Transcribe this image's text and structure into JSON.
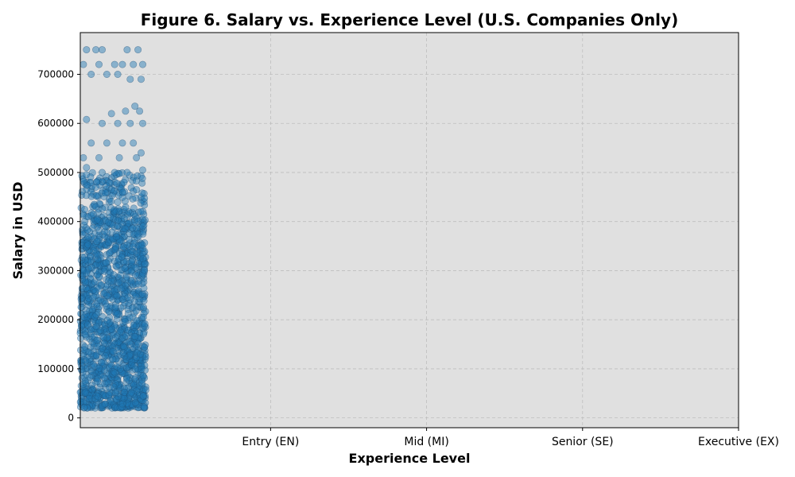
{
  "chart_data": {
    "type": "scatter",
    "title": "Figure 6. Salary vs. Experience Level (U.S. Companies Only)",
    "xlabel": "Experience Level",
    "ylabel": "Salary in USD",
    "x_categories": [
      "Entry (EN)",
      "Mid (MI)",
      "Senior (SE)",
      "Executive (EX)"
    ],
    "x_categories_tick_positions": [
      0,
      1,
      2,
      3
    ],
    "xlim": [
      -1.22,
      3
    ],
    "ylim": [
      -20000,
      785000
    ],
    "yticks": [
      0,
      100000,
      200000,
      300000,
      400000,
      500000,
      600000,
      700000
    ],
    "grid": true,
    "point_color": "#1f77b4",
    "point_edge_color": "#1f4f78",
    "background_color": "#e0e0e0",
    "series": [
      {
        "x_range": [
          -1.22,
          -0.8
        ],
        "dense_salary_range": [
          20000,
          420000
        ],
        "outliers": [
          [
            -1.18,
            750000
          ],
          [
            -1.12,
            750000
          ],
          [
            -1.08,
            750000
          ],
          [
            -0.92,
            750000
          ],
          [
            -0.85,
            750000
          ],
          [
            -1.2,
            720000
          ],
          [
            -1.1,
            720000
          ],
          [
            -1.0,
            720000
          ],
          [
            -0.95,
            720000
          ],
          [
            -0.88,
            720000
          ],
          [
            -0.82,
            720000
          ],
          [
            -1.15,
            700000
          ],
          [
            -1.05,
            700000
          ],
          [
            -0.98,
            700000
          ],
          [
            -0.9,
            690000
          ],
          [
            -0.83,
            690000
          ],
          [
            -1.02,
            620000
          ],
          [
            -0.93,
            625000
          ],
          [
            -0.87,
            635000
          ],
          [
            -0.84,
            625000
          ],
          [
            -1.18,
            608000
          ],
          [
            -1.08,
            600000
          ],
          [
            -0.98,
            600000
          ],
          [
            -0.9,
            600000
          ],
          [
            -0.82,
            600000
          ],
          [
            -1.15,
            560000
          ],
          [
            -1.05,
            560000
          ],
          [
            -0.95,
            560000
          ],
          [
            -0.88,
            560000
          ],
          [
            -1.2,
            530000
          ],
          [
            -1.1,
            530000
          ],
          [
            -0.97,
            530000
          ],
          [
            -0.86,
            530000
          ],
          [
            -0.83,
            540000
          ],
          [
            -1.18,
            510000
          ],
          [
            -1.08,
            500000
          ],
          [
            -1.0,
            500000
          ],
          [
            -0.92,
            500000
          ],
          [
            -0.82,
            505000
          ],
          [
            -1.12,
            470000
          ],
          [
            -1.02,
            465000
          ],
          [
            -0.94,
            480000
          ],
          [
            -0.86,
            465000
          ]
        ]
      }
    ]
  }
}
